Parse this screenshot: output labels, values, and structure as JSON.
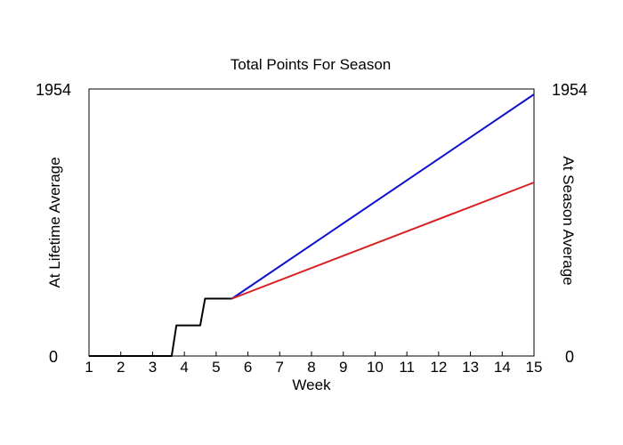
{
  "chart_data": {
    "type": "line",
    "title": "Total Points For Season",
    "xlabel": "Week",
    "ylabel_left": "At Lifetime Average",
    "ylabel_right": "At Season Average",
    "xlim": [
      1,
      15
    ],
    "ylim": [
      0,
      1954
    ],
    "x_ticks": [
      "1",
      "2",
      "3",
      "4",
      "5",
      "6",
      "7",
      "8",
      "9",
      "10",
      "11",
      "12",
      "13",
      "14",
      "15"
    ],
    "y_ticks_left": [
      "0",
      "1954"
    ],
    "y_ticks_right": [
      "0",
      "1954"
    ],
    "colors": {
      "actual": "#000000",
      "lifetime": "#1010d0",
      "season": "#d82020",
      "ylabel_left": "#1010d0",
      "ylabel_right": "#d82020"
    },
    "series": [
      {
        "key": "actual",
        "x": [
          1,
          3.6,
          3.75,
          4.5,
          4.65,
          5.5
        ],
        "y": [
          0,
          0,
          224,
          224,
          420,
          420
        ]
      },
      {
        "key": "lifetime",
        "x": [
          5.5,
          15
        ],
        "y": [
          420,
          1915
        ]
      },
      {
        "key": "season",
        "x": [
          5.5,
          15
        ],
        "y": [
          420,
          1270
        ]
      }
    ]
  }
}
